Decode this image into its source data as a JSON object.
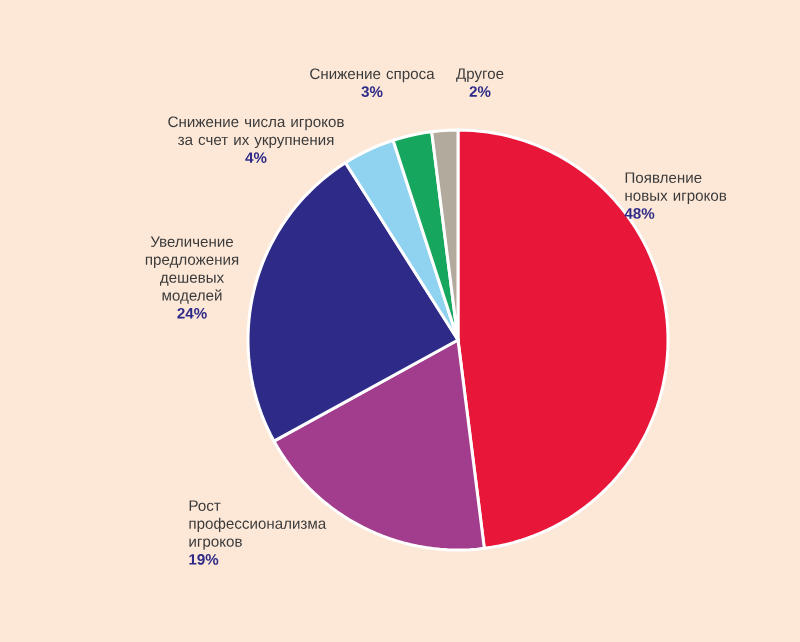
{
  "chart_data": {
    "type": "pie",
    "categories": [
      "Появление новых игроков",
      "Рост профессионализма игроков",
      "Увеличение предложения дешевых моделей",
      "Снижение числа игроков за счет их укрупнения",
      "Снижение спроса",
      "Другое"
    ],
    "values": [
      48,
      19,
      24,
      4,
      3,
      2
    ],
    "value_labels": [
      "48%",
      "19%",
      "24%",
      "4%",
      "3%",
      "2%"
    ],
    "colors": [
      "#e8173a",
      "#a23c8c",
      "#2e2b88",
      "#8fd3f1",
      "#17a65e",
      "#b3aa9e"
    ]
  }
}
